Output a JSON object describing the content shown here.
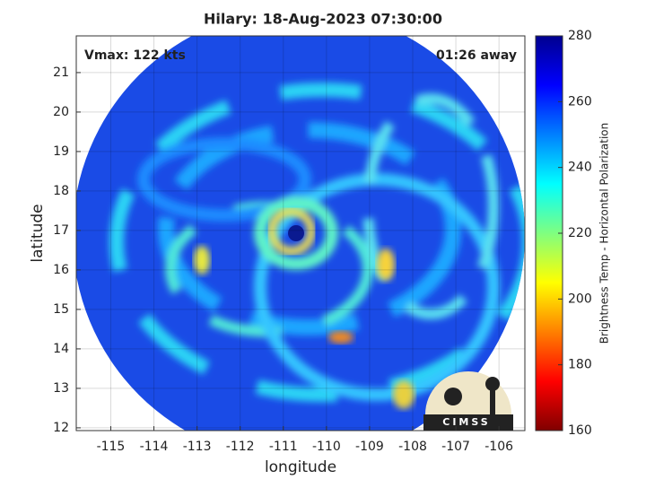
{
  "chart_data": {
    "type": "map",
    "title": "Hilary: 18-Aug-2023 07:30:00",
    "x_label": "longitude",
    "y_label": "latitude",
    "annotations": [
      "Vmax: 122 kts",
      "01:26 away"
    ],
    "logo": "CIMSS",
    "xlim": [
      -115.8,
      -105.4
    ],
    "xticks": [
      -115,
      -114,
      -113,
      -112,
      -111,
      -110,
      -109,
      -108,
      -107,
      -106
    ],
    "ylim": [
      11.93,
      21.93
    ],
    "yticks": [
      12,
      13,
      14,
      15,
      16,
      17,
      18,
      19,
      20,
      21
    ],
    "grid": true,
    "colorbar": {
      "label": "Brightness Temp - Horizontal Polarization",
      "colormap": "jet",
      "lim": [
        160,
        280
      ],
      "ticks": [
        160,
        180,
        200,
        220,
        240,
        260,
        280
      ]
    }
  }
}
